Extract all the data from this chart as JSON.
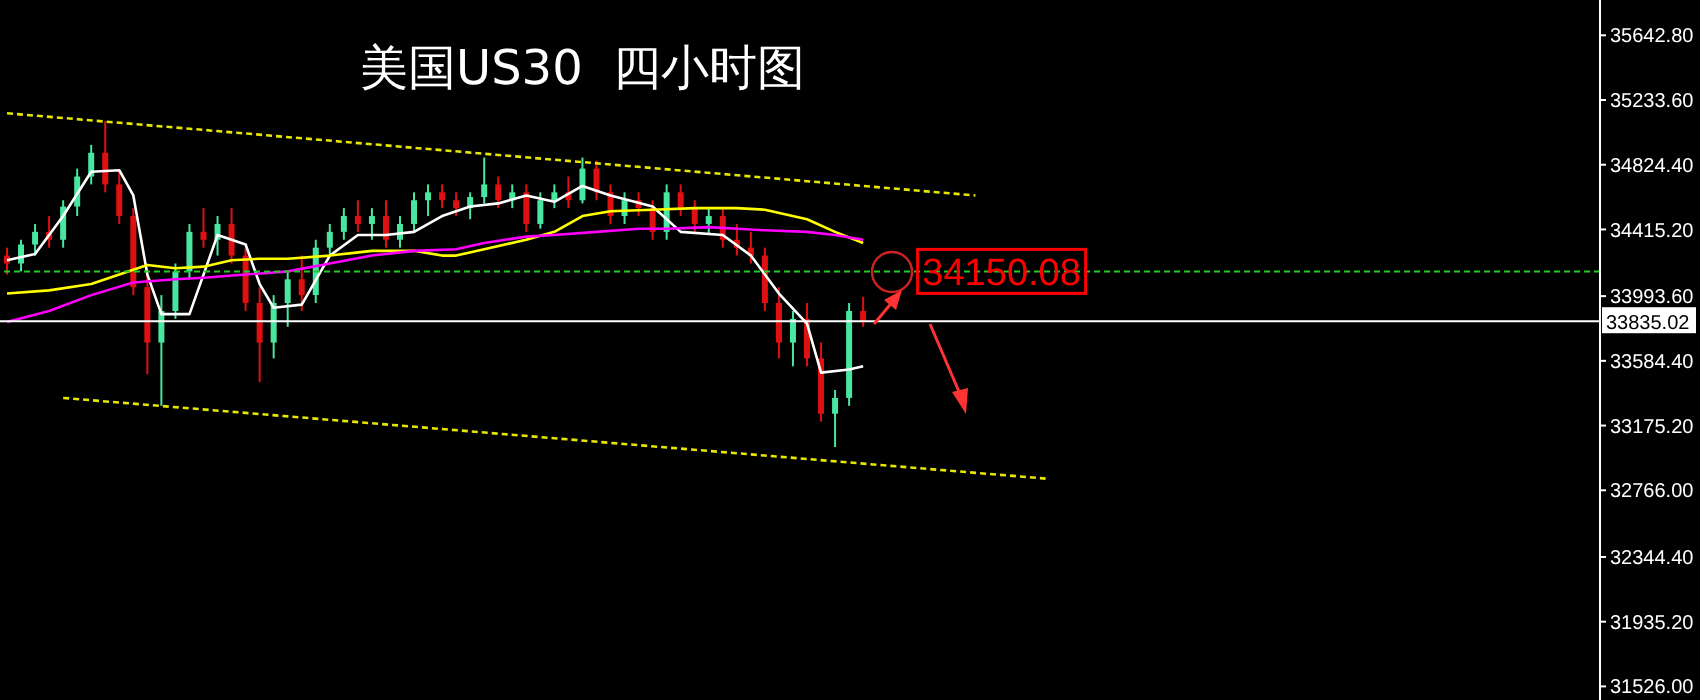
{
  "chart_data": {
    "type": "candlestick",
    "title": "美国US30  四小时图",
    "categories": [
      null,
      null,
      null,
      null,
      null,
      null,
      null,
      null,
      null,
      null,
      null,
      null,
      null,
      null,
      null,
      null,
      null,
      null,
      null,
      null,
      null,
      null,
      null,
      null,
      null,
      null,
      null,
      null,
      null,
      null,
      null,
      null,
      null,
      null,
      null,
      null,
      null,
      null,
      null,
      null,
      null,
      null,
      null,
      null,
      null,
      null,
      null,
      null,
      null,
      null,
      null,
      null,
      null,
      null,
      null,
      null,
      null,
      null,
      null,
      null,
      null,
      null,
      null,
      null,
      null,
      null,
      null,
      null,
      null,
      null,
      null,
      null,
      null,
      null,
      null,
      null,
      null,
      null,
      null,
      null,
      null,
      null,
      null,
      null,
      null,
      null,
      null,
      null,
      null,
      null,
      null,
      null,
      null,
      null,
      null,
      null,
      null,
      null,
      null,
      null,
      null,
      null,
      null,
      null,
      null,
      null,
      null,
      null,
      null,
      null,
      null,
      null,
      null,
      null
    ],
    "ohlc": [
      [
        34250,
        34300,
        34130,
        34200
      ],
      [
        34200,
        34350,
        34150,
        34320
      ],
      [
        34320,
        34450,
        34250,
        34400
      ],
      [
        34400,
        34500,
        34300,
        34350
      ],
      [
        34350,
        34600,
        34300,
        34560
      ],
      [
        34560,
        34800,
        34500,
        34750
      ],
      [
        34750,
        34950,
        34700,
        34900
      ],
      [
        34900,
        35100,
        34650,
        34700
      ],
      [
        34700,
        34780,
        34450,
        34500
      ],
      [
        34500,
        34550,
        34000,
        34050
      ],
      [
        34050,
        34150,
        33500,
        33700
      ],
      [
        33700,
        34000,
        33300,
        33900
      ],
      [
        33900,
        34200,
        33850,
        34150
      ],
      [
        34150,
        34450,
        34100,
        34400
      ],
      [
        34400,
        34550,
        34300,
        34350
      ],
      [
        34350,
        34500,
        34250,
        34450
      ],
      [
        34450,
        34550,
        34200,
        34250
      ],
      [
        34250,
        34300,
        33900,
        33950
      ],
      [
        33950,
        34050,
        33450,
        33700
      ],
      [
        33700,
        34000,
        33600,
        33950
      ],
      [
        33950,
        34150,
        33800,
        34100
      ],
      [
        34100,
        34250,
        33900,
        34000
      ],
      [
        34000,
        34350,
        33950,
        34300
      ],
      [
        34300,
        34450,
        34250,
        34400
      ],
      [
        34400,
        34550,
        34350,
        34500
      ],
      [
        34500,
        34600,
        34400,
        34450
      ],
      [
        34450,
        34550,
        34350,
        34500
      ],
      [
        34500,
        34600,
        34300,
        34350
      ],
      [
        34350,
        34500,
        34300,
        34450
      ],
      [
        34450,
        34650,
        34400,
        34600
      ],
      [
        34600,
        34700,
        34500,
        34650
      ],
      [
        34650,
        34700,
        34550,
        34600
      ],
      [
        34600,
        34650,
        34500,
        34550
      ],
      [
        34550,
        34650,
        34480,
        34620
      ],
      [
        34620,
        34870,
        34580,
        34700
      ],
      [
        34700,
        34750,
        34550,
        34600
      ],
      [
        34600,
        34700,
        34550,
        34650
      ],
      [
        34650,
        34700,
        34400,
        34450
      ],
      [
        34450,
        34650,
        34420,
        34600
      ],
      [
        34600,
        34700,
        34550,
        34650
      ],
      [
        34650,
        34750,
        34550,
        34600
      ],
      [
        34600,
        34870,
        34580,
        34800
      ],
      [
        34800,
        34850,
        34600,
        34650
      ],
      [
        34650,
        34700,
        34450,
        34500
      ],
      [
        34500,
        34650,
        34450,
        34600
      ],
      [
        34600,
        34650,
        34500,
        34550
      ],
      [
        34550,
        34600,
        34350,
        34400
      ],
      [
        34400,
        34700,
        34350,
        34650
      ],
      [
        34650,
        34700,
        34500,
        34550
      ],
      [
        34550,
        34600,
        34400,
        34450
      ],
      [
        34450,
        34550,
        34380,
        34500
      ],
      [
        34500,
        34550,
        34300,
        34350
      ],
      [
        34350,
        34450,
        34250,
        34300
      ],
      [
        34300,
        34400,
        34200,
        34250
      ],
      [
        34250,
        34300,
        33900,
        33950
      ],
      [
        33950,
        34050,
        33600,
        33700
      ],
      [
        33700,
        33900,
        33550,
        33850
      ],
      [
        33850,
        33950,
        33550,
        33600
      ],
      [
        33600,
        33700,
        33200,
        33250
      ],
      [
        33250,
        33400,
        33040,
        33350
      ],
      [
        33350,
        33950,
        33300,
        33900
      ],
      [
        33900,
        33990,
        33800,
        33835
      ],
      null,
      null,
      null,
      null,
      null,
      null,
      null,
      null,
      null,
      null,
      null,
      null,
      null,
      null,
      null,
      null,
      null,
      null,
      null,
      null,
      null,
      null,
      null,
      null,
      null,
      null,
      null,
      null,
      null,
      null,
      null,
      null,
      null,
      null,
      null,
      null,
      null,
      null,
      null,
      null,
      null,
      null,
      null,
      null,
      null,
      null,
      null,
      null,
      null,
      null,
      null,
      null
    ],
    "colors": [
      "#e01010",
      "#48e6a0",
      "#48e6a0",
      "#e01010",
      "#48e6a0",
      "#48e6a0",
      "#48e6a0",
      "#e01010",
      "#e01010",
      "#e01010",
      "#e01010",
      "#48e6a0",
      "#48e6a0",
      "#48e6a0",
      "#e01010",
      "#48e6a0",
      "#e01010",
      "#e01010",
      "#e01010",
      "#48e6a0",
      "#48e6a0",
      "#e01010",
      "#48e6a0",
      "#48e6a0",
      "#48e6a0",
      "#e01010",
      "#48e6a0",
      "#e01010",
      "#48e6a0",
      "#48e6a0",
      "#48e6a0",
      "#e01010",
      "#e01010",
      "#48e6a0",
      "#48e6a0",
      "#e01010",
      "#48e6a0",
      "#e01010",
      "#48e6a0",
      "#48e6a0",
      "#e01010",
      "#48e6a0",
      "#e01010",
      "#e01010",
      "#48e6a0",
      "#e01010",
      "#e01010",
      "#48e6a0",
      "#e01010",
      "#e01010",
      "#48e6a0",
      "#e01010",
      "#e01010",
      "#e01010",
      "#e01010",
      "#e01010",
      "#48e6a0",
      "#e01010",
      "#e01010",
      "#48e6a0",
      "#48e6a0",
      "#e01010",
      null,
      null,
      null,
      null,
      null,
      null,
      null,
      null,
      null,
      null,
      null,
      null,
      null,
      null,
      null,
      null,
      null,
      null,
      null,
      null,
      null,
      null,
      null,
      null,
      null,
      null,
      null,
      null,
      null,
      null,
      null,
      null,
      null,
      null,
      null,
      null,
      null,
      null,
      null,
      null,
      null,
      null,
      null,
      null,
      null,
      null,
      null,
      null,
      null,
      null,
      null,
      null
    ],
    "series": [
      {
        "type": "line",
        "color": "#ffffff",
        "line_style": "solid",
        "values": [
          34220,
          null,
          34260,
          null,
          34500,
          null,
          34780,
          null,
          34790,
          34630,
          34130,
          33880,
          null,
          33880,
          34130,
          34380,
          null,
          34320,
          34070,
          33920,
          null,
          33940,
          null,
          34250,
          null,
          34380,
          null,
          34380,
          null,
          34400,
          null,
          34500,
          null,
          34560,
          null,
          34580,
          null,
          34630,
          null,
          34590,
          null,
          34690,
          null,
          34630,
          null,
          null,
          34560,
          null,
          34400,
          null,
          null,
          34380,
          null,
          34250,
          null,
          34010,
          null,
          33820,
          33510,
          null,
          33530,
          33550,
          null,
          null,
          null,
          null,
          null,
          null,
          null,
          null,
          null,
          null,
          null,
          null,
          null,
          null,
          null,
          null,
          null,
          null,
          null,
          null,
          null,
          null,
          null,
          null,
          null,
          null,
          null,
          null,
          null,
          null,
          null,
          null,
          null,
          null,
          null,
          null,
          null,
          null,
          null,
          null,
          null,
          null,
          null,
          null,
          null,
          null,
          null,
          null,
          null,
          null,
          null,
          null
        ]
      },
      {
        "type": "line",
        "color": "#ffff00",
        "line_style": "solid",
        "values": [
          34010,
          null,
          null,
          34030,
          null,
          null,
          34070,
          null,
          34130,
          null,
          34190,
          null,
          34170,
          null,
          34180,
          null,
          34220,
          null,
          34230,
          null,
          34230,
          null,
          null,
          34250,
          null,
          null,
          34280,
          null,
          null,
          34280,
          null,
          34250,
          34250,
          null,
          34290,
          null,
          null,
          34350,
          null,
          34400,
          null,
          34500,
          null,
          34530,
          null,
          null,
          34540,
          null,
          null,
          34550,
          null,
          null,
          34550,
          null,
          34540,
          null,
          null,
          34480,
          null,
          34400,
          null,
          34330,
          null,
          null,
          null,
          null,
          null,
          null,
          null,
          null,
          null,
          null,
          null,
          null,
          null,
          null,
          null,
          null,
          null,
          null,
          null,
          null,
          null,
          null,
          null,
          null,
          null,
          null,
          null,
          null,
          null,
          null,
          null,
          null,
          null,
          null,
          null,
          null,
          null,
          null,
          null,
          null,
          null,
          null,
          null,
          null,
          null,
          null,
          null,
          null,
          null,
          null,
          null,
          null
        ]
      },
      {
        "type": "line",
        "color": "#ff00ff",
        "line_style": "solid",
        "values": [
          33830,
          null,
          null,
          33900,
          null,
          null,
          34000,
          null,
          null,
          34080,
          null,
          null,
          34100,
          null,
          34110,
          null,
          null,
          34130,
          null,
          null,
          34150,
          null,
          null,
          34200,
          null,
          null,
          34250,
          null,
          null,
          34280,
          null,
          null,
          34290,
          null,
          34330,
          null,
          null,
          34370,
          null,
          34380,
          null,
          null,
          34400,
          null,
          null,
          34420,
          null,
          34420,
          null,
          null,
          34430,
          null,
          34420,
          null,
          34410,
          null,
          null,
          34400,
          null,
          34380,
          null,
          34350,
          null,
          null,
          null,
          null,
          null,
          null,
          null,
          null,
          null,
          null,
          null,
          null,
          null,
          null,
          null,
          null,
          null,
          null,
          null,
          null,
          null,
          null,
          null,
          null,
          null,
          null,
          null,
          null,
          null,
          null,
          null,
          null,
          null,
          null,
          null,
          null,
          null,
          null,
          null,
          null,
          null,
          null,
          null,
          null,
          null,
          null,
          null,
          null,
          null,
          null,
          null,
          null
        ]
      },
      {
        "type": "line",
        "color": "#e6e600",
        "line_style": "dashed",
        "values": [
          35150,
          null,
          null,
          null,
          null,
          null,
          null,
          null,
          null,
          null,
          null,
          null,
          null,
          null,
          null,
          null,
          null,
          null,
          null,
          null,
          null,
          null,
          null,
          null,
          null,
          null,
          null,
          null,
          null,
          null,
          null,
          null,
          null,
          null,
          null,
          null,
          null,
          null,
          null,
          null,
          null,
          null,
          null,
          null,
          null,
          null,
          null,
          null,
          null,
          null,
          null,
          null,
          null,
          null,
          null,
          null,
          null,
          null,
          null,
          null,
          null,
          null,
          null,
          null,
          null,
          null,
          null,
          null,
          null,
          34630,
          null,
          null,
          null,
          null,
          null,
          null,
          null,
          null,
          null,
          null,
          null,
          null,
          null,
          null,
          null,
          null,
          null,
          null,
          null,
          null,
          null,
          null,
          null,
          null,
          null,
          null,
          null,
          null,
          null,
          null,
          null,
          null,
          null,
          null,
          null,
          null,
          null,
          null,
          null,
          null,
          null,
          null,
          null,
          null
        ]
      },
      {
        "type": "line",
        "color": "#e6e600",
        "line_style": "dashed",
        "values": [
          null,
          null,
          null,
          null,
          33350,
          null,
          null,
          null,
          null,
          null,
          null,
          null,
          null,
          null,
          null,
          null,
          null,
          null,
          null,
          null,
          null,
          null,
          null,
          null,
          null,
          null,
          null,
          null,
          null,
          null,
          null,
          null,
          null,
          null,
          null,
          null,
          null,
          null,
          null,
          null,
          null,
          null,
          null,
          null,
          null,
          null,
          null,
          null,
          null,
          null,
          null,
          null,
          null,
          null,
          null,
          null,
          null,
          null,
          null,
          null,
          null,
          null,
          null,
          null,
          null,
          null,
          null,
          null,
          null,
          null,
          null,
          null,
          null,
          null,
          32840,
          null,
          null,
          null,
          null,
          null,
          null,
          null,
          null,
          null,
          null,
          null,
          null,
          null,
          null,
          null,
          null,
          null,
          null,
          null,
          null,
          null,
          null,
          null,
          null,
          null,
          null,
          null,
          null,
          null,
          null,
          null,
          null,
          null,
          null,
          null,
          null,
          null,
          null,
          null
        ]
      }
    ],
    "ref_lines": [
      {
        "axis": "y",
        "value": 34150.08,
        "color": "#22cc22",
        "line_style": "dashed"
      },
      {
        "axis": "y",
        "value": 33835.02,
        "label": "33835.02",
        "color": "#ffffff",
        "line_style": "solid"
      }
    ],
    "annotations": [
      {
        "text": "34150.08",
        "y": 34150.08
      }
    ],
    "ylim": [
      31440,
      35866
    ],
    "yticks": [
      {
        "value": 35642.8,
        "label": "35642.80"
      },
      {
        "value": 35233.6,
        "label": "35233.60"
      },
      {
        "value": 34824.4,
        "label": "34824.40"
      },
      {
        "value": 34415.2,
        "label": "34415.20"
      },
      {
        "value": 33993.6,
        "label": "33993.60"
      },
      {
        "value": 33584.4,
        "label": "33584.40"
      },
      {
        "value": 33175.2,
        "label": "33175.20"
      },
      {
        "value": 32766,
        "label": "32766.00"
      },
      {
        "value": 32344.4,
        "label": "32344.40"
      },
      {
        "value": 31935.2,
        "label": "31935.20"
      },
      {
        "value": 31526,
        "label": "31526.00"
      }
    ],
    "tick_labels": "y"
  }
}
